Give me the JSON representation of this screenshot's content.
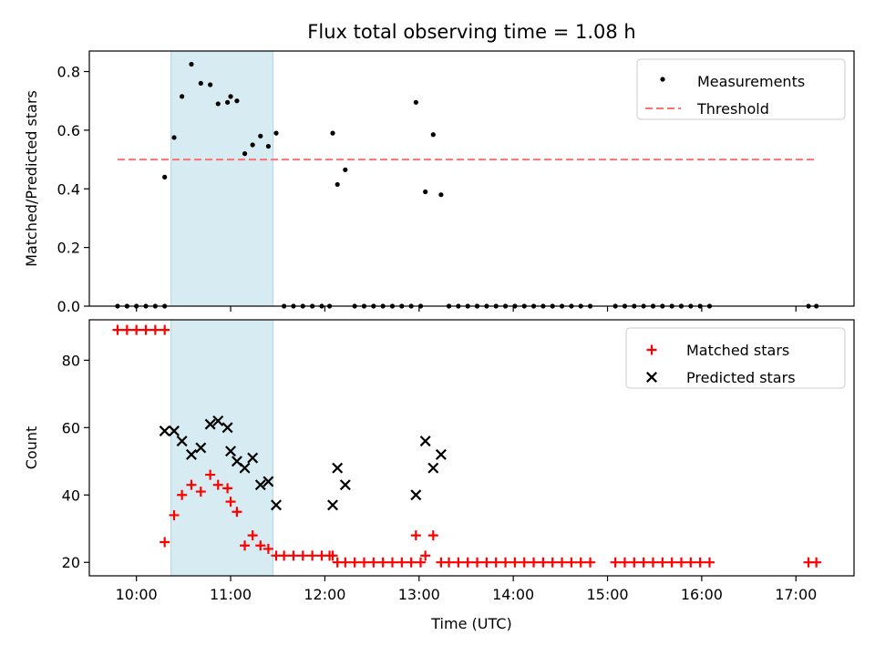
{
  "chart_data": [
    {
      "type": "scatter",
      "title": "Flux total observing time = 1.08 h",
      "xlabel": "",
      "ylabel": "Matched/Predicted stars",
      "xlim": [
        "09:30",
        "17:37"
      ],
      "ylim": [
        0,
        0.87
      ],
      "yticks": [
        "0.0",
        "0.2",
        "0.4",
        "0.6",
        "0.8"
      ],
      "grid": false,
      "legend_position": "top-right",
      "highlight_span": [
        "10:22",
        "11:27"
      ],
      "series": [
        {
          "name": "Measurements",
          "marker": "dot",
          "color": "#000000",
          "points": [
            [
              "09:48",
              0
            ],
            [
              "09:54",
              0
            ],
            [
              "10:00",
              0
            ],
            [
              "10:06",
              0
            ],
            [
              "10:12",
              0
            ],
            [
              "10:18",
              0
            ],
            [
              "10:18",
              0.44
            ],
            [
              "10:24",
              0.575
            ],
            [
              "10:29",
              0.715
            ],
            [
              "10:35",
              0.825
            ],
            [
              "10:41",
              0.76
            ],
            [
              "10:47",
              0.755
            ],
            [
              "10:52",
              0.69
            ],
            [
              "10:58",
              0.695
            ],
            [
              "11:00",
              0.715
            ],
            [
              "11:04",
              0.7
            ],
            [
              "11:09",
              0.52
            ],
            [
              "11:14",
              0.55
            ],
            [
              "11:19",
              0.58
            ],
            [
              "11:24",
              0.545
            ],
            [
              "11:29",
              0.59
            ],
            [
              "11:34",
              0
            ],
            [
              "11:40",
              0
            ],
            [
              "11:46",
              0
            ],
            [
              "11:52",
              0
            ],
            [
              "11:58",
              0
            ],
            [
              "12:03",
              0
            ],
            [
              "12:05",
              0.59
            ],
            [
              "12:08",
              0.415
            ],
            [
              "12:13",
              0.465
            ],
            [
              "12:19",
              0
            ],
            [
              "12:25",
              0
            ],
            [
              "12:31",
              0
            ],
            [
              "12:37",
              0
            ],
            [
              "12:43",
              0
            ],
            [
              "12:49",
              0
            ],
            [
              "12:55",
              0
            ],
            [
              "13:01",
              0
            ],
            [
              "12:58",
              0.695
            ],
            [
              "13:04",
              0.39
            ],
            [
              "13:09",
              0.585
            ],
            [
              "13:14",
              0.38
            ],
            [
              "13:19",
              0
            ],
            [
              "13:25",
              0
            ],
            [
              "13:31",
              0
            ],
            [
              "13:37",
              0
            ],
            [
              "13:43",
              0
            ],
            [
              "13:49",
              0
            ],
            [
              "13:55",
              0
            ],
            [
              "14:01",
              0
            ],
            [
              "14:07",
              0
            ],
            [
              "14:13",
              0
            ],
            [
              "14:19",
              0
            ],
            [
              "14:25",
              0
            ],
            [
              "14:31",
              0
            ],
            [
              "14:37",
              0
            ],
            [
              "14:43",
              0
            ],
            [
              "14:49",
              0
            ],
            [
              "15:05",
              0
            ],
            [
              "15:11",
              0
            ],
            [
              "15:17",
              0
            ],
            [
              "15:23",
              0
            ],
            [
              "15:29",
              0
            ],
            [
              "15:35",
              0
            ],
            [
              "15:41",
              0
            ],
            [
              "15:47",
              0
            ],
            [
              "15:53",
              0
            ],
            [
              "15:59",
              0
            ],
            [
              "16:05",
              0
            ],
            [
              "17:08",
              0
            ],
            [
              "17:13",
              0
            ]
          ]
        },
        {
          "name": "Threshold",
          "style": "dashed-line",
          "color": "#ff7070",
          "points": [
            [
              "09:48",
              0.5
            ],
            [
              "17:13",
              0.5
            ]
          ]
        }
      ]
    },
    {
      "type": "scatter",
      "title": "",
      "xlabel": "Time (UTC)",
      "ylabel": "Count",
      "xlim": [
        "09:30",
        "17:37"
      ],
      "ylim": [
        16,
        92
      ],
      "yticks": [
        "20",
        "40",
        "60",
        "80"
      ],
      "xticks": [
        "10:00",
        "11:00",
        "12:00",
        "13:00",
        "14:00",
        "15:00",
        "16:00",
        "17:00"
      ],
      "grid": false,
      "legend_position": "top-right",
      "highlight_span": [
        "10:22",
        "11:27"
      ],
      "series": [
        {
          "name": "Matched stars",
          "marker": "plus",
          "color": "#ff0000",
          "points": [
            [
              "09:48",
              89
            ],
            [
              "09:54",
              89
            ],
            [
              "10:00",
              89
            ],
            [
              "10:06",
              89
            ],
            [
              "10:12",
              89
            ],
            [
              "10:18",
              89
            ],
            [
              "10:18",
              26
            ],
            [
              "10:24",
              34
            ],
            [
              "10:29",
              40
            ],
            [
              "10:35",
              43
            ],
            [
              "10:41",
              41
            ],
            [
              "10:47",
              46
            ],
            [
              "10:52",
              43
            ],
            [
              "10:58",
              42
            ],
            [
              "11:00",
              38
            ],
            [
              "11:04",
              35
            ],
            [
              "11:09",
              25
            ],
            [
              "11:14",
              28
            ],
            [
              "11:19",
              25
            ],
            [
              "11:24",
              24
            ],
            [
              "11:29",
              22
            ],
            [
              "11:34",
              22
            ],
            [
              "11:40",
              22
            ],
            [
              "11:46",
              22
            ],
            [
              "11:52",
              22
            ],
            [
              "11:58",
              22
            ],
            [
              "12:03",
              22
            ],
            [
              "12:05",
              22
            ],
            [
              "12:08",
              20
            ],
            [
              "12:13",
              20
            ],
            [
              "12:19",
              20
            ],
            [
              "12:25",
              20
            ],
            [
              "12:31",
              20
            ],
            [
              "12:37",
              20
            ],
            [
              "12:43",
              20
            ],
            [
              "12:49",
              20
            ],
            [
              "12:55",
              20
            ],
            [
              "13:01",
              20
            ],
            [
              "12:58",
              28
            ],
            [
              "13:04",
              22
            ],
            [
              "13:09",
              28
            ],
            [
              "13:14",
              20
            ],
            [
              "13:19",
              20
            ],
            [
              "13:25",
              20
            ],
            [
              "13:31",
              20
            ],
            [
              "13:37",
              20
            ],
            [
              "13:43",
              20
            ],
            [
              "13:49",
              20
            ],
            [
              "13:55",
              20
            ],
            [
              "14:01",
              20
            ],
            [
              "14:07",
              20
            ],
            [
              "14:13",
              20
            ],
            [
              "14:19",
              20
            ],
            [
              "14:25",
              20
            ],
            [
              "14:31",
              20
            ],
            [
              "14:37",
              20
            ],
            [
              "14:43",
              20
            ],
            [
              "14:49",
              20
            ],
            [
              "15:05",
              20
            ],
            [
              "15:11",
              20
            ],
            [
              "15:17",
              20
            ],
            [
              "15:23",
              20
            ],
            [
              "15:29",
              20
            ],
            [
              "15:35",
              20
            ],
            [
              "15:41",
              20
            ],
            [
              "15:47",
              20
            ],
            [
              "15:53",
              20
            ],
            [
              "15:59",
              20
            ],
            [
              "16:05",
              20
            ],
            [
              "17:08",
              20
            ],
            [
              "17:13",
              20
            ]
          ]
        },
        {
          "name": "Predicted stars",
          "marker": "x",
          "color": "#000000",
          "points": [
            [
              "10:18",
              59
            ],
            [
              "10:24",
              59
            ],
            [
              "10:29",
              56
            ],
            [
              "10:35",
              52
            ],
            [
              "10:41",
              54
            ],
            [
              "10:47",
              61
            ],
            [
              "10:52",
              62
            ],
            [
              "10:58",
              60
            ],
            [
              "11:00",
              53
            ],
            [
              "11:04",
              50
            ],
            [
              "11:09",
              48
            ],
            [
              "11:14",
              51
            ],
            [
              "11:19",
              43
            ],
            [
              "11:24",
              44
            ],
            [
              "11:29",
              37
            ],
            [
              "12:05",
              37
            ],
            [
              "12:08",
              48
            ],
            [
              "12:13",
              43
            ],
            [
              "12:58",
              40
            ],
            [
              "13:04",
              56
            ],
            [
              "13:09",
              48
            ],
            [
              "13:14",
              52
            ]
          ]
        }
      ]
    }
  ]
}
